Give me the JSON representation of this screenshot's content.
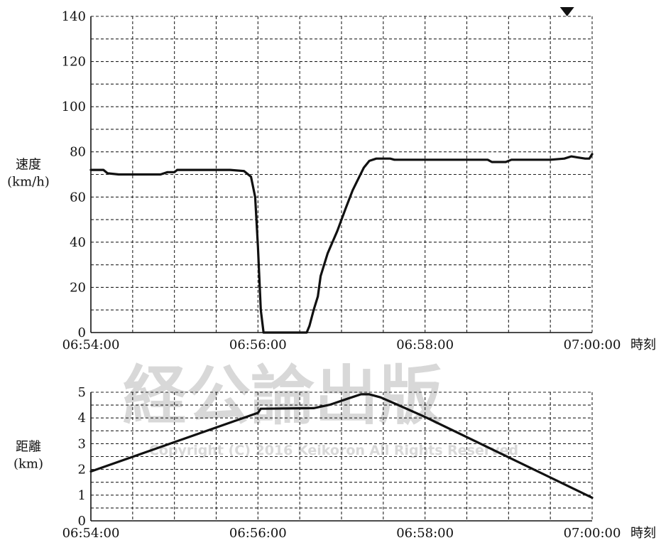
{
  "watermark": {
    "main": "経公論出版",
    "sub": "Copyright (C) 2016 Keikoron All Rights Reserved"
  },
  "x_unit_label": "時刻",
  "chart_data": [
    {
      "type": "line",
      "ylabel": [
        "速度",
        "(km/h)"
      ],
      "x_ticks": [
        "06:54:00",
        "06:56:00",
        "06:58:00",
        "07:00:00"
      ],
      "x_unit": "時刻",
      "ylim": [
        0,
        140
      ],
      "y_ticks": [
        0,
        20,
        40,
        60,
        80,
        100,
        120,
        140
      ],
      "grid": true,
      "marker": {
        "shape": "down-triangle",
        "x": "06:59:42"
      },
      "series": [
        {
          "points": [
            [
              "06:54:00",
              72
            ],
            [
              "06:54:05",
              72
            ],
            [
              "06:54:09",
              72
            ],
            [
              "06:54:12",
              70.5
            ],
            [
              "06:54:20",
              70
            ],
            [
              "06:54:40",
              70
            ],
            [
              "06:54:50",
              70
            ],
            [
              "06:54:55",
              71
            ],
            [
              "06:55:00",
              71
            ],
            [
              "06:55:02",
              72
            ],
            [
              "06:55:20",
              72
            ],
            [
              "06:55:40",
              72
            ],
            [
              "06:55:50",
              71.5
            ],
            [
              "06:55:55",
              69
            ],
            [
              "06:55:58",
              60
            ],
            [
              "06:56:00",
              38
            ],
            [
              "06:56:02",
              10
            ],
            [
              "06:56:04",
              0
            ],
            [
              "06:56:10",
              0
            ],
            [
              "06:56:30",
              0
            ],
            [
              "06:56:35",
              0
            ],
            [
              "06:56:37",
              3
            ],
            [
              "06:56:40",
              10
            ],
            [
              "06:56:43",
              16
            ],
            [
              "06:56:45",
              25
            ],
            [
              "06:56:50",
              35
            ],
            [
              "06:56:57",
              45
            ],
            [
              "06:57:03",
              55
            ],
            [
              "06:57:08",
              63
            ],
            [
              "06:57:12",
              68
            ],
            [
              "06:57:16",
              73
            ],
            [
              "06:57:20",
              76
            ],
            [
              "06:57:25",
              77
            ],
            [
              "06:57:30",
              77
            ],
            [
              "06:57:35",
              77
            ],
            [
              "06:57:38",
              76.5
            ],
            [
              "06:58:00",
              76.5
            ],
            [
              "06:58:30",
              76.5
            ],
            [
              "06:58:45",
              76.5
            ],
            [
              "06:58:48",
              75.5
            ],
            [
              "06:58:58",
              75.5
            ],
            [
              "06:59:02",
              76.5
            ],
            [
              "06:59:30",
              76.5
            ],
            [
              "06:59:40",
              77
            ],
            [
              "06:59:45",
              78
            ],
            [
              "06:59:50",
              77.5
            ],
            [
              "06:59:55",
              77
            ],
            [
              "06:59:58",
              77
            ],
            [
              "07:00:00",
              79
            ]
          ]
        }
      ]
    },
    {
      "type": "line",
      "ylabel": [
        "距離",
        "(km)"
      ],
      "x_ticks": [
        "06:54:00",
        "06:56:00",
        "06:58:00",
        "07:00:00"
      ],
      "x_unit": "時刻",
      "ylim": [
        0,
        5
      ],
      "y_ticks": [
        0,
        1,
        2,
        3,
        4,
        5
      ],
      "grid": true,
      "series": [
        {
          "points": [
            [
              "06:54:00",
              1.92
            ],
            [
              "06:56:00",
              4.2
            ],
            [
              "06:56:02",
              4.36
            ],
            [
              "06:56:40",
              4.38
            ],
            [
              "06:56:52",
              4.52
            ],
            [
              "06:57:05",
              4.76
            ],
            [
              "06:57:14",
              4.92
            ],
            [
              "06:57:20",
              4.92
            ],
            [
              "06:57:28",
              4.8
            ],
            [
              "06:57:40",
              4.52
            ],
            [
              "06:58:00",
              4.04
            ],
            [
              "07:00:00",
              0.9
            ]
          ]
        }
      ]
    }
  ]
}
